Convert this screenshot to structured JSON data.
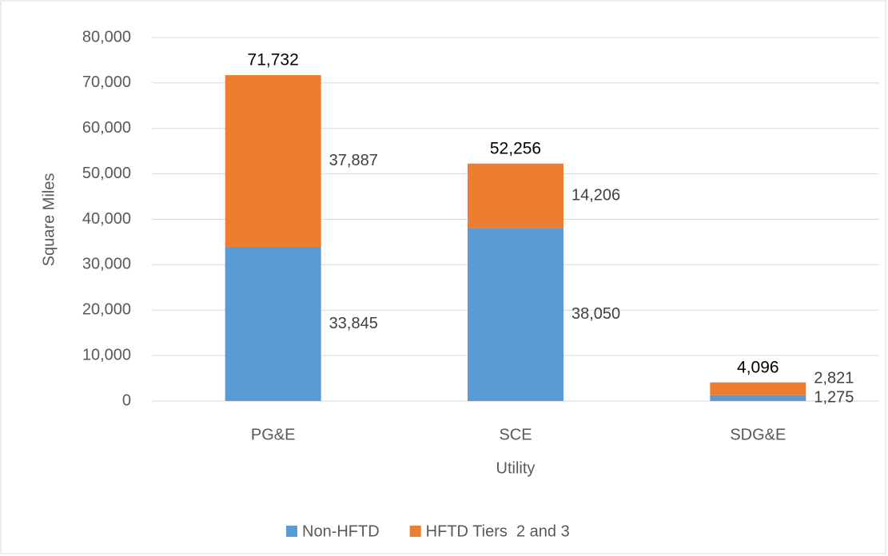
{
  "chart_data": {
    "type": "stacked_bar",
    "x_label": "Utility",
    "y_label": "Square Miles",
    "categories": [
      "PG&E",
      "SCE",
      "SDG&E"
    ],
    "series": [
      {
        "name": "Non-HFTD",
        "color": "#5b9bd5",
        "values": [
          33845,
          38050,
          1275
        ],
        "value_labels": [
          "33,845",
          "38,050",
          "1,275"
        ]
      },
      {
        "name": "HFTD Tiers  2 and 3",
        "color": "#ed7d31",
        "values": [
          37887,
          14206,
          2821
        ],
        "value_labels": [
          "37,887",
          "14,206",
          "2,821"
        ]
      }
    ],
    "totals": [
      71732,
      52256,
      4096
    ],
    "total_labels": [
      "71,732",
      "52,256",
      "4,096"
    ],
    "ylim": [
      0,
      80000
    ],
    "yticks": [
      0,
      {
        "value": 10000,
        "label": "10,000"
      },
      {
        "value": 20000,
        "label": "20,000"
      },
      {
        "value": 30000,
        "label": "30,000"
      },
      {
        "value": 40000,
        "label": "40,000"
      },
      {
        "value": 50000,
        "label": "50,000"
      },
      {
        "value": 60000,
        "label": "60,000"
      },
      {
        "value": 70000,
        "label": "70,000"
      },
      {
        "value": 80000,
        "label": "80,000"
      }
    ],
    "grid": true,
    "legend": "bottom"
  }
}
